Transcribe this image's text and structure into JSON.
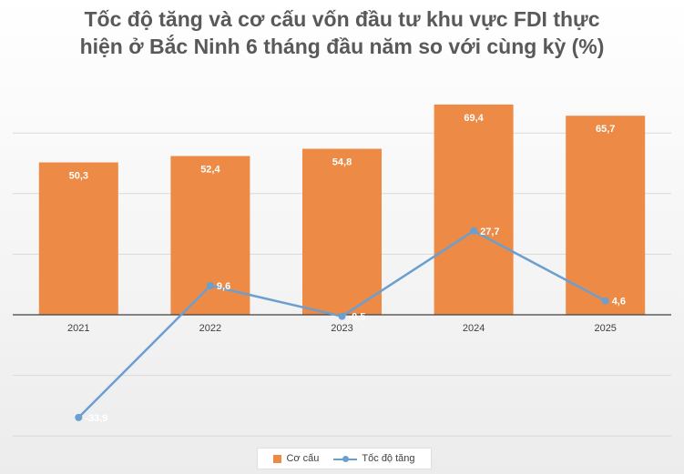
{
  "chart_data": {
    "type": "bar",
    "title_lines": [
      "Tốc độ tăng và cơ cấu vốn đầu tư khu vực FDI thực",
      "hiện ở Bắc Ninh 6 tháng đầu năm so với cùng kỳ (%)"
    ],
    "categories": [
      "2021",
      "2022",
      "2023",
      "2024",
      "2025"
    ],
    "series": [
      {
        "name": "Cơ cấu",
        "type": "bar",
        "color": "#ed8a45",
        "values": [
          50.3,
          52.4,
          54.8,
          69.4,
          65.7
        ],
        "labels": [
          "50,3",
          "52,4",
          "54,8",
          "69,4",
          "65,7"
        ]
      },
      {
        "name": "Tốc độ tăng",
        "type": "line",
        "color": "#6a9fd0",
        "values": [
          -33.9,
          9.6,
          -0.5,
          27.7,
          4.6
        ],
        "labels": [
          "-33,9",
          "9,6",
          "-0,5",
          "27,7",
          "4,6"
        ]
      }
    ],
    "ylim": [
      -40,
      80
    ],
    "gridline_step": 20,
    "legend_position": "bottom",
    "grid": true
  }
}
